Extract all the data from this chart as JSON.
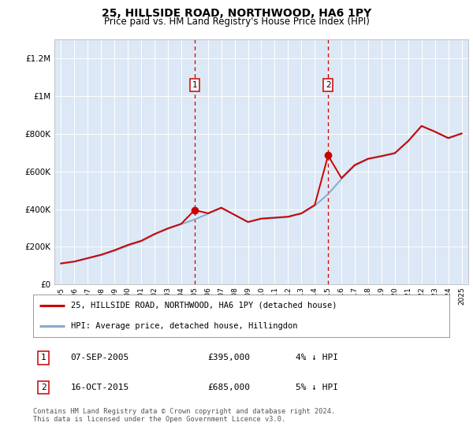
{
  "title": "25, HILLSIDE ROAD, NORTHWOOD, HA6 1PY",
  "subtitle": "Price paid vs. HM Land Registry's House Price Index (HPI)",
  "title_fontsize": 10,
  "subtitle_fontsize": 8.5,
  "background_color": "#ffffff",
  "plot_bg_color": "#dce8f5",
  "ylim": [
    0,
    1300000
  ],
  "yticks": [
    0,
    200000,
    400000,
    600000,
    800000,
    1000000,
    1200000
  ],
  "ytick_labels": [
    "£0",
    "£200K",
    "£400K",
    "£600K",
    "£800K",
    "£1M",
    "£1.2M"
  ],
  "years": [
    1995,
    1996,
    1997,
    1998,
    1999,
    2000,
    2001,
    2002,
    2003,
    2004,
    2005,
    2006,
    2007,
    2008,
    2009,
    2010,
    2011,
    2012,
    2013,
    2014,
    2015,
    2016,
    2017,
    2018,
    2019,
    2020,
    2021,
    2022,
    2023,
    2024,
    2025
  ],
  "hpi_values": [
    110000,
    120000,
    138000,
    155000,
    178000,
    205000,
    228000,
    265000,
    295000,
    320000,
    345000,
    375000,
    405000,
    368000,
    330000,
    348000,
    352000,
    358000,
    375000,
    418000,
    480000,
    560000,
    630000,
    665000,
    680000,
    695000,
    760000,
    840000,
    810000,
    775000,
    800000
  ],
  "price_values": [
    112000,
    122000,
    140000,
    158000,
    182000,
    210000,
    232000,
    268000,
    298000,
    322000,
    395000,
    378000,
    408000,
    370000,
    332000,
    350000,
    355000,
    360000,
    378000,
    422000,
    685000,
    565000,
    635000,
    668000,
    682000,
    698000,
    762000,
    842000,
    812000,
    778000,
    802000
  ],
  "red_line_color": "#cc0000",
  "blue_line_color": "#88aacc",
  "marker1_year": 2005,
  "marker2_year": 2015,
  "marker1_price": 395000,
  "marker2_price": 685000,
  "legend_line1": "25, HILLSIDE ROAD, NORTHWOOD, HA6 1PY (detached house)",
  "legend_line2": "HPI: Average price, detached house, Hillingdon",
  "table_row1": [
    "1",
    "07-SEP-2005",
    "£395,000",
    "4% ↓ HPI"
  ],
  "table_row2": [
    "2",
    "16-OCT-2015",
    "£685,000",
    "5% ↓ HPI"
  ],
  "footer": "Contains HM Land Registry data © Crown copyright and database right 2024.\nThis data is licensed under the Open Government Licence v3.0.",
  "grid_color": "#ffffff",
  "vline_color": "#cc0000"
}
